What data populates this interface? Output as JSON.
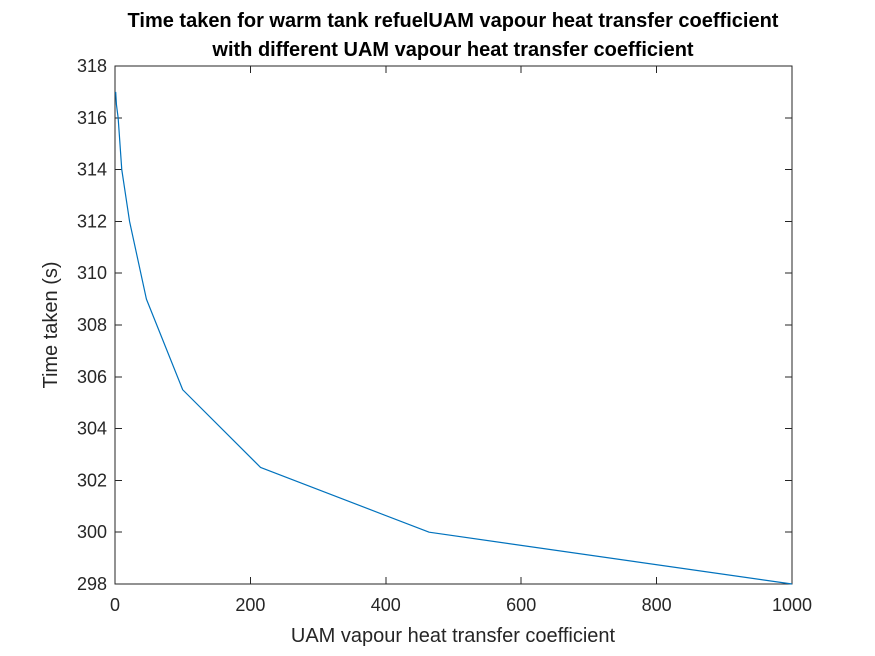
{
  "chart_data": {
    "type": "line",
    "title_line1": "Time taken for warm tank refuelUAM vapour heat transfer coefficient",
    "title_line2": "with different UAM vapour heat transfer coefficient",
    "xlabel": "UAM vapour heat transfer coefficient",
    "ylabel": "Time taken (s)",
    "xlim": [
      0,
      1000
    ],
    "ylim": [
      298,
      318
    ],
    "xticks": [
      0,
      200,
      400,
      600,
      800,
      1000
    ],
    "yticks": [
      298,
      300,
      302,
      304,
      306,
      308,
      310,
      312,
      314,
      316,
      318
    ],
    "grid": false,
    "series": [
      {
        "color": "#0072BD",
        "x": [
          1,
          2.15,
          4.64,
          10,
          21.5,
          46.4,
          100,
          215,
          464,
          1000
        ],
        "y": [
          317,
          316.5,
          316,
          314,
          312,
          309,
          305.5,
          302.5,
          300,
          298
        ]
      }
    ]
  }
}
